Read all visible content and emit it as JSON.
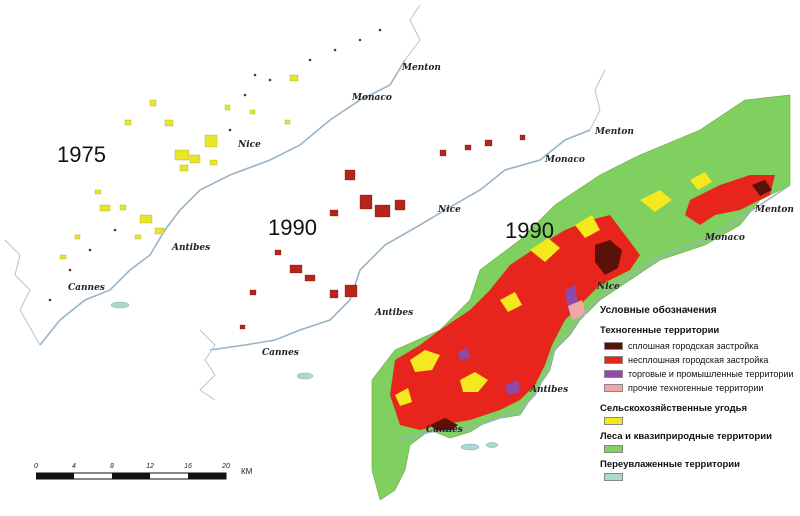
{
  "maps": {
    "year_1975": "1975",
    "year_1990_a": "1990",
    "year_1990_b": "1990"
  },
  "places": {
    "m1": [
      "Menton",
      "Monaco",
      "Nice",
      "Antibes",
      "Cannes"
    ],
    "m2": [
      "Menton",
      "Monaco",
      "Nice",
      "Antibes",
      "Cannes"
    ],
    "m3": [
      "Menton",
      "Monaco",
      "Nice",
      "Antibes",
      "Cannes"
    ]
  },
  "legend": {
    "title": "Условные обозначения",
    "groups": [
      {
        "heading": "Техногенные территории",
        "items": [
          {
            "label": "сплошная городская застройка",
            "color": "#5a1208"
          },
          {
            "label": "несплошная городская застройка",
            "color": "#e8251c"
          },
          {
            "label": "торговые и промышленные территории",
            "color": "#8e4aa6"
          },
          {
            "label": "прочие техногенные территории",
            "color": "#f2a6a6"
          }
        ]
      },
      {
        "heading": "Сельскохозяйственные угодья",
        "color": "#f4e81e"
      },
      {
        "heading": "Леса и квазиприродные территории",
        "color": "#7fd05e"
      },
      {
        "heading": "Переувлаженные территории",
        "color": "#a9d9cf"
      }
    ]
  },
  "scale": {
    "ticks": [
      "0",
      "4",
      "8",
      "12",
      "16",
      "20"
    ],
    "unit": "КМ"
  },
  "colors": {
    "coast": "#9ab4c6",
    "outline": "#b9c3cc",
    "forest": "#7fd05e",
    "urban_dense": "#5a1208",
    "urban_sparse": "#e8251c",
    "agri": "#f4e81e",
    "industrial": "#8e4aa6",
    "water": "#a9d9cf"
  }
}
